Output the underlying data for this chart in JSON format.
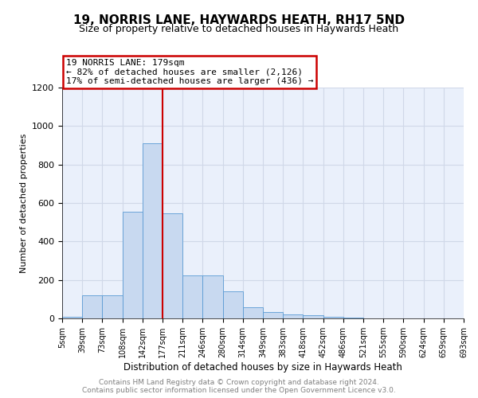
{
  "title1": "19, NORRIS LANE, HAYWARDS HEATH, RH17 5ND",
  "title2": "Size of property relative to detached houses in Haywards Heath",
  "xlabel": "Distribution of detached houses by size in Haywards Heath",
  "ylabel": "Number of detached properties",
  "footnote": "Contains HM Land Registry data © Crown copyright and database right 2024.\nContains public sector information licensed under the Open Government Licence v3.0.",
  "bin_labels": [
    "5sqm",
    "39sqm",
    "73sqm",
    "108sqm",
    "142sqm",
    "177sqm",
    "211sqm",
    "246sqm",
    "280sqm",
    "314sqm",
    "349sqm",
    "383sqm",
    "418sqm",
    "452sqm",
    "486sqm",
    "521sqm",
    "555sqm",
    "590sqm",
    "624sqm",
    "659sqm",
    "693sqm"
  ],
  "bar_values": [
    10,
    120,
    120,
    555,
    910,
    545,
    225,
    225,
    140,
    57,
    35,
    22,
    15,
    8,
    4,
    2,
    1,
    1,
    0,
    0
  ],
  "bar_color": "#c8d9f0",
  "bar_edge_color": "#5a9bd4",
  "vline_bin_index": 5,
  "vline_color": "#cc0000",
  "annotation_line1": "19 NORRIS LANE: 179sqm",
  "annotation_line2": "← 82% of detached houses are smaller (2,126)",
  "annotation_line3": "17% of semi-detached houses are larger (436) →",
  "annotation_box_color": "#cc0000",
  "ylim": [
    0,
    1200
  ],
  "yticks": [
    0,
    200,
    400,
    600,
    800,
    1000,
    1200
  ],
  "grid_color": "#d0d8e8",
  "plot_bg_color": "#eaf0fb",
  "title1_fontsize": 11,
  "title2_fontsize": 9,
  "footnote_fontsize": 6.5
}
